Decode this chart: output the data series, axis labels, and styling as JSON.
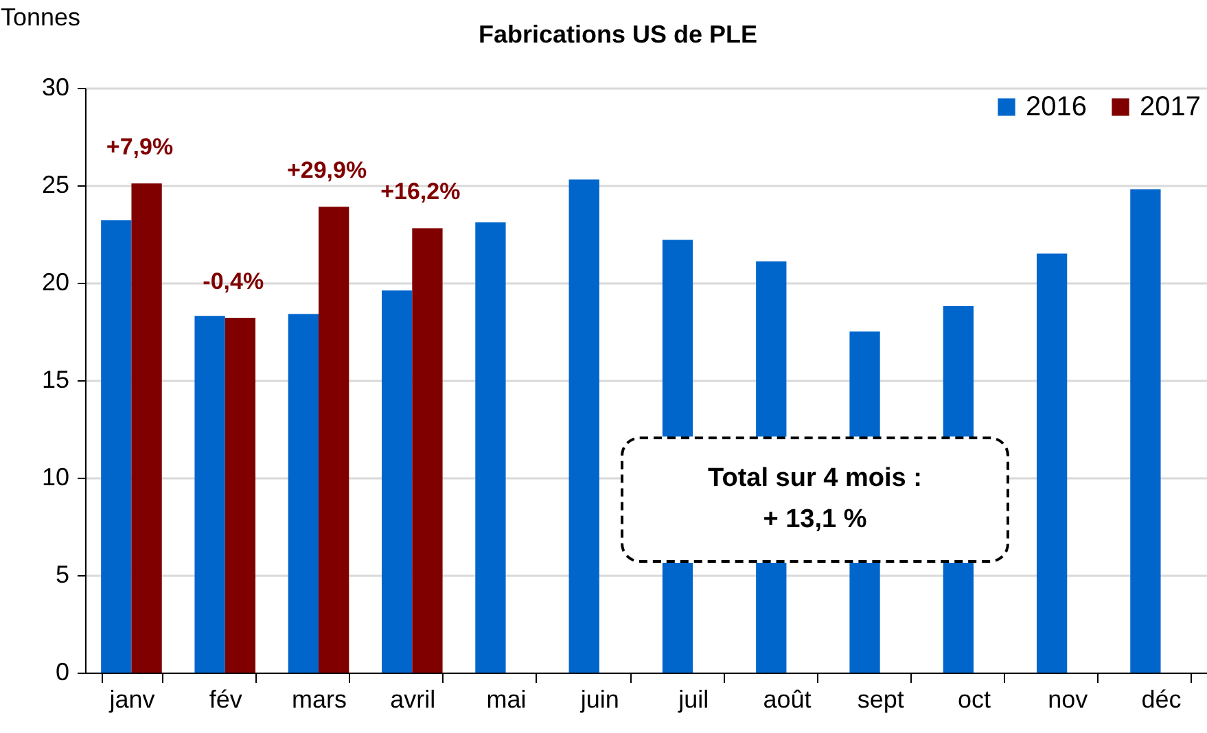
{
  "chart_data": {
    "type": "bar",
    "title": "Fabrications US de PLE",
    "ylabel": "Tonnes",
    "categories": [
      "janv",
      "fév",
      "mars",
      "avril",
      "mai",
      "juin",
      "juil",
      "août",
      "sept",
      "oct",
      "nov",
      "déc"
    ],
    "series": [
      {
        "name": "2016",
        "color": "#0066cc",
        "values": [
          23.2,
          18.3,
          18.4,
          19.6,
          23.1,
          25.3,
          22.2,
          21.1,
          17.5,
          18.8,
          21.5,
          24.8
        ]
      },
      {
        "name": "2017",
        "color": "#800000",
        "values": [
          25.1,
          18.2,
          23.9,
          22.8,
          null,
          null,
          null,
          null,
          null,
          null,
          null,
          null
        ]
      }
    ],
    "ylim": [
      0,
      30
    ],
    "yticks": [
      0,
      5,
      10,
      15,
      20,
      25,
      30
    ],
    "grid": "y",
    "legend": "top right",
    "annotations": [
      {
        "text": "+7,9%",
        "x": "janv",
        "y": 25.1
      },
      {
        "text": "-0,4%",
        "x": "fév",
        "y": 18.2
      },
      {
        "text": "+29,9%",
        "x": "mars",
        "y": 23.9
      },
      {
        "text": "+16,2%",
        "x": "avril",
        "y": 22.8
      },
      "Total sur 4 mois :\n+ 13,1 %"
    ]
  }
}
